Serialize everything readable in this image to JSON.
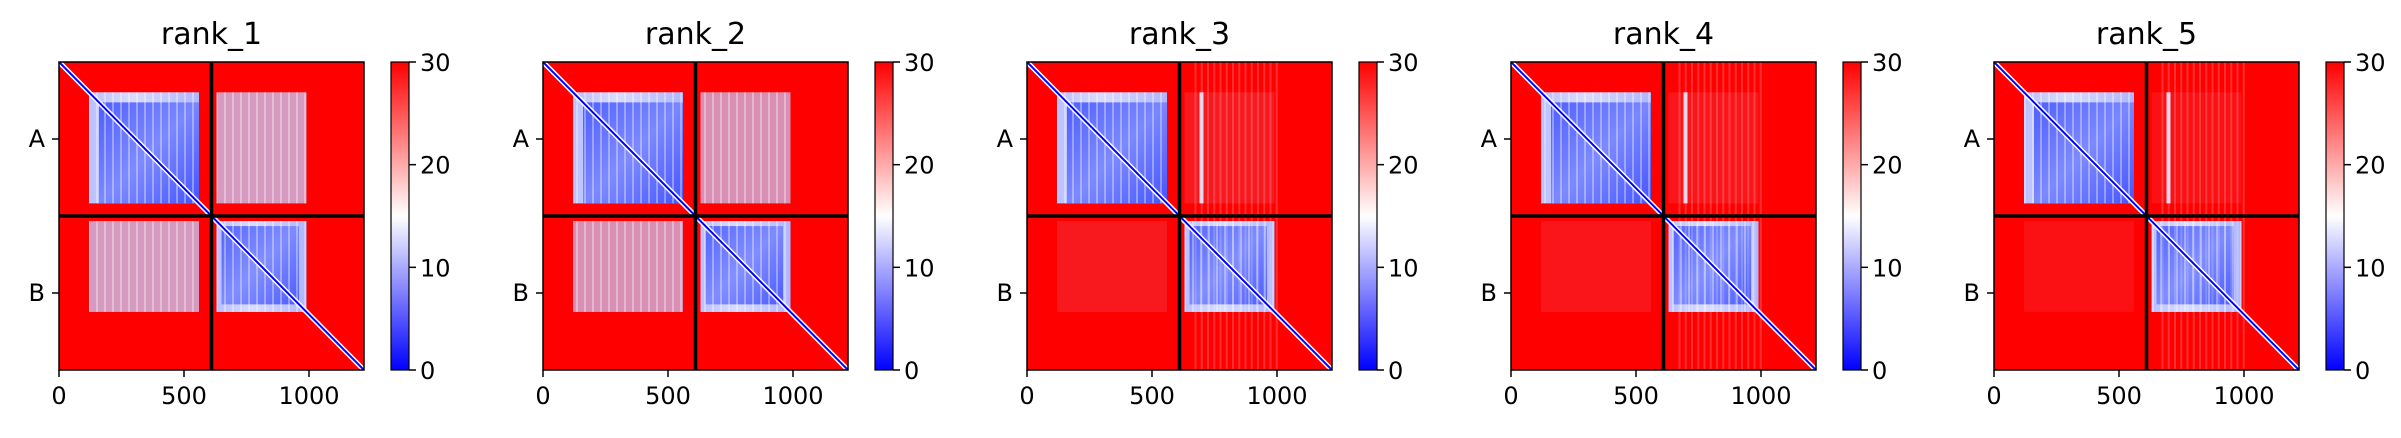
{
  "chart_data": [
    {
      "type": "heatmap",
      "title": "rank_1",
      "x_ticks": [
        0,
        500,
        1000
      ],
      "xlim": [
        0,
        1220
      ],
      "chain_labels": [
        "A",
        "B"
      ],
      "chain_boundary": 610,
      "colorbar": {
        "min": 0,
        "max": 30,
        "ticks": [
          0,
          10,
          20,
          30
        ],
        "colors": [
          "#0000ff",
          "#ffffff",
          "#ff0000"
        ]
      }
    },
    {
      "type": "heatmap",
      "title": "rank_2",
      "x_ticks": [
        0,
        500,
        1000
      ],
      "xlim": [
        0,
        1220
      ],
      "chain_labels": [
        "A",
        "B"
      ],
      "chain_boundary": 610,
      "colorbar": {
        "min": 0,
        "max": 30,
        "ticks": [
          0,
          10,
          20,
          30
        ],
        "colors": [
          "#0000ff",
          "#ffffff",
          "#ff0000"
        ]
      }
    },
    {
      "type": "heatmap",
      "title": "rank_3",
      "x_ticks": [
        0,
        500,
        1000
      ],
      "xlim": [
        0,
        1220
      ],
      "chain_labels": [
        "A",
        "B"
      ],
      "chain_boundary": 610,
      "colorbar": {
        "min": 0,
        "max": 30,
        "ticks": [
          0,
          10,
          20,
          30
        ],
        "colors": [
          "#0000ff",
          "#ffffff",
          "#ff0000"
        ]
      }
    },
    {
      "type": "heatmap",
      "title": "rank_4",
      "x_ticks": [
        0,
        500,
        1000
      ],
      "xlim": [
        0,
        1220
      ],
      "chain_labels": [
        "A",
        "B"
      ],
      "chain_boundary": 610,
      "colorbar": {
        "min": 0,
        "max": 30,
        "ticks": [
          0,
          10,
          20,
          30
        ],
        "colors": [
          "#0000ff",
          "#ffffff",
          "#ff0000"
        ]
      }
    },
    {
      "type": "heatmap",
      "title": "rank_5",
      "x_ticks": [
        0,
        500,
        1000
      ],
      "xlim": [
        0,
        1220
      ],
      "chain_labels": [
        "A",
        "B"
      ],
      "chain_boundary": 610,
      "colorbar": {
        "min": 0,
        "max": 30,
        "ticks": [
          0,
          10,
          20,
          30
        ],
        "colors": [
          "#0000ff",
          "#ffffff",
          "#ff0000"
        ]
      }
    }
  ]
}
